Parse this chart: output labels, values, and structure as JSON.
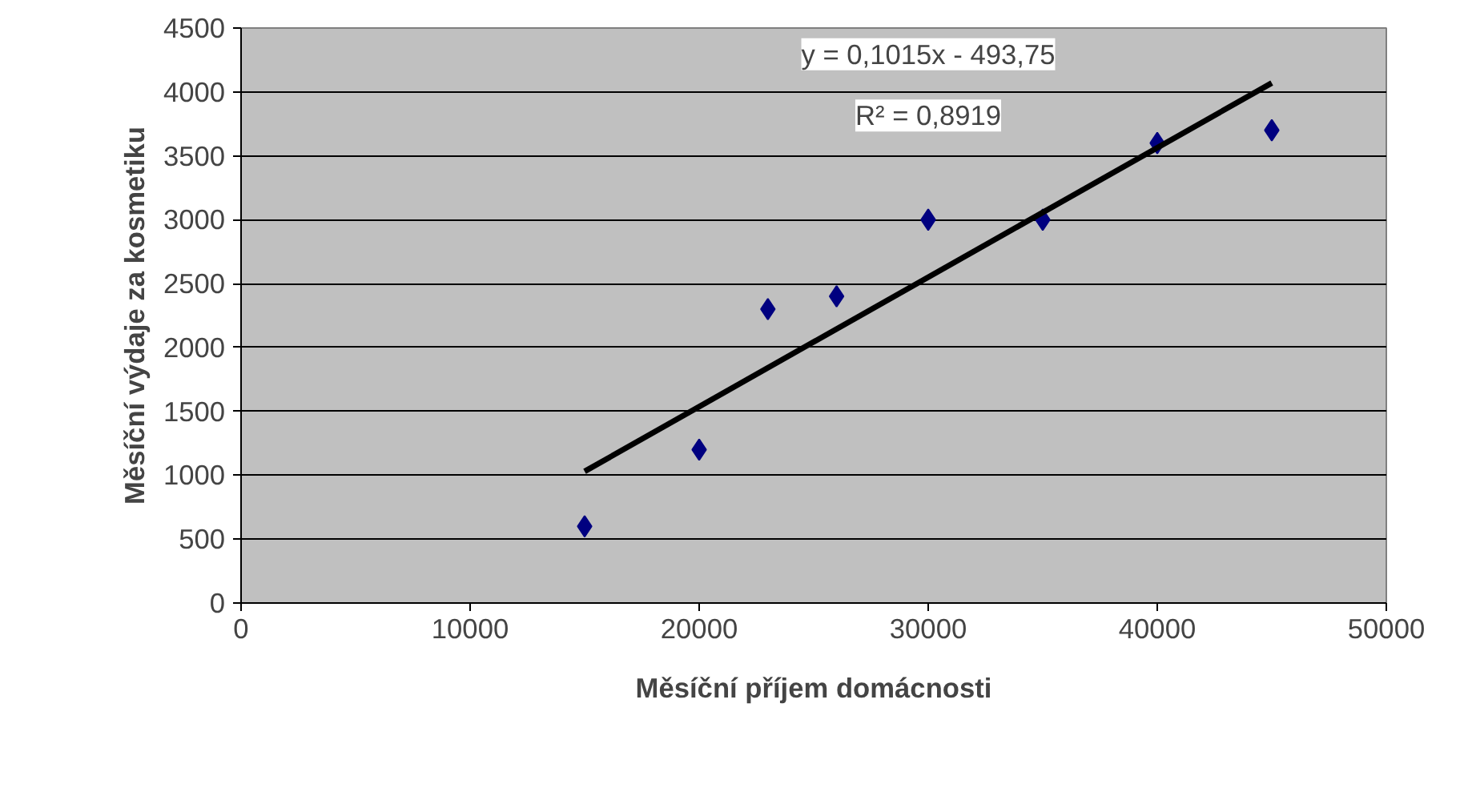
{
  "chart_data": {
    "type": "scatter",
    "xlabel": "Měsíční příjem domácnosti",
    "ylabel": "Měsíční výdaje za kosmetiku",
    "x": [
      15000,
      20000,
      23000,
      26000,
      30000,
      35000,
      40000,
      45000
    ],
    "series": [
      {
        "marker": "diamond",
        "color": "#000080",
        "values": [
          600,
          1200,
          2300,
          2400,
          3000,
          3000,
          3600,
          3700
        ]
      },
      {
        "type": "line",
        "marker": "none",
        "color": "#000000",
        "x": [
          15000,
          45000
        ],
        "values": [
          1030,
          4070
        ]
      }
    ],
    "xlim": [
      0,
      50000
    ],
    "xticks": [
      0,
      10000,
      20000,
      30000,
      40000,
      50000
    ],
    "ylim": [
      0,
      4500
    ],
    "yticks": [
      0,
      500,
      1000,
      1500,
      2000,
      2500,
      3000,
      3500,
      4000,
      4500
    ],
    "grid": "y",
    "line_style": "solid",
    "annotations": [
      "y = 0,1015x - 493,75",
      "R² = 0,8919"
    ]
  }
}
